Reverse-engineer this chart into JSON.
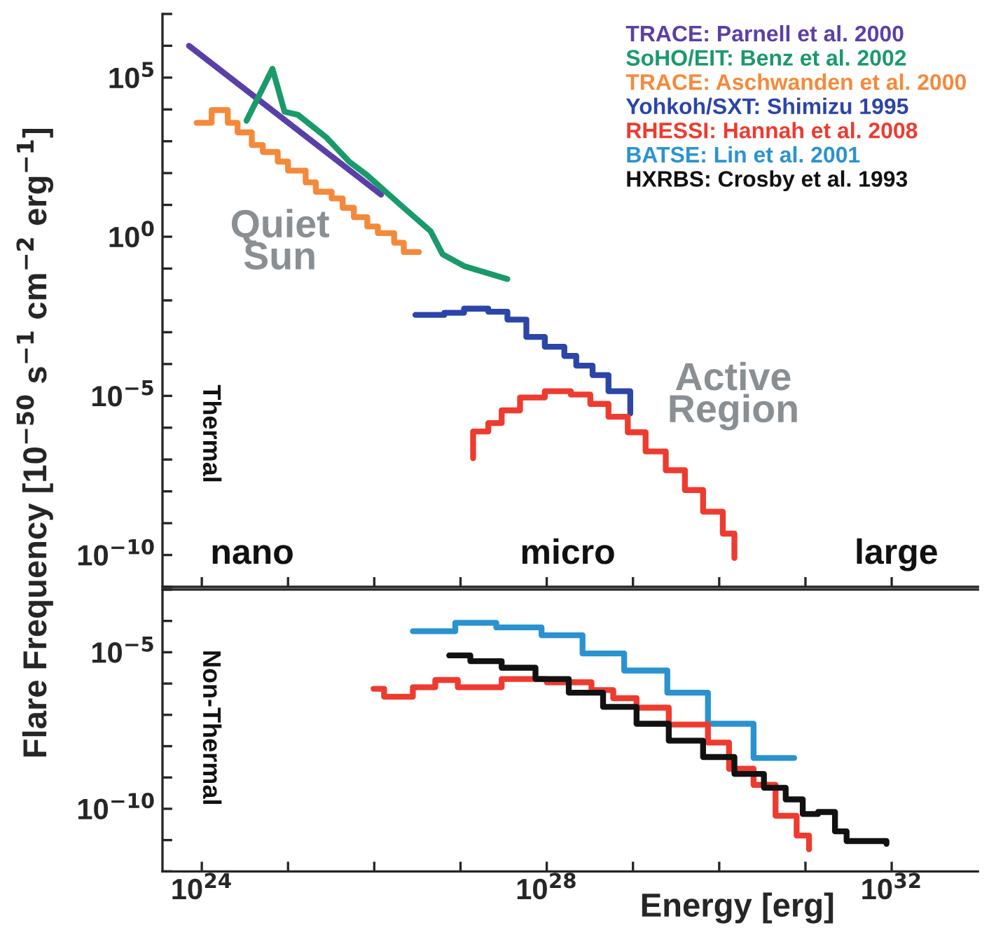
{
  "chart_data": [
    {
      "type": "line",
      "ylabel": "Flare Frequency [10$^{−50}$ s$^{−1}$ cm$^{−2}$ erg$^{−1}$]",
      "log": "xy",
      "legend": "top right",
      "grid": false,
      "tick_labels": "y",
      "xlim": [
        3.5e+23,
        1e+33
      ],
      "ylim": [
        1e-11,
        10000000.0
      ],
      "xticks": [
        {
          "value": 1e+24,
          "label": null
        },
        {
          "value": 1e+25,
          "label": null
        },
        {
          "value": 1e+26,
          "label": null
        },
        {
          "value": 1e+27,
          "label": null
        },
        {
          "value": 1e+28,
          "label": null
        },
        {
          "value": 1e+29,
          "label": null
        },
        {
          "value": 1e+30,
          "label": null
        },
        {
          "value": 1e+31,
          "label": null
        },
        {
          "value": 1e+32,
          "label": null
        }
      ],
      "yticks": [
        {
          "value": 1e-11,
          "label": null
        },
        {
          "value": 1e-10,
          "label": "10$^{−10}$"
        },
        {
          "value": 1e-09,
          "label": null
        },
        {
          "value": 1e-08,
          "label": null
        },
        {
          "value": 1e-07,
          "label": null
        },
        {
          "value": 1e-06,
          "label": null
        },
        {
          "value": 1e-05,
          "label": "10$^{−5}$"
        },
        {
          "value": 0.0001,
          "label": null
        },
        {
          "value": 0.001,
          "label": null
        },
        {
          "value": 0.01,
          "label": null
        },
        {
          "value": 0.1,
          "label": null
        },
        {
          "value": 1,
          "label": "10$^{0}$"
        },
        {
          "value": 10,
          "label": null
        },
        {
          "value": 100,
          "label": null
        },
        {
          "value": 1000,
          "label": null
        },
        {
          "value": 10000.0,
          "label": null
        },
        {
          "value": 100000.0,
          "label": "10$^{5}$"
        },
        {
          "value": 1000000.0,
          "label": null
        },
        {
          "value": 10000000.0,
          "label": null
        }
      ],
      "annotations": [
        "Quiet\nSun",
        "Active\nRegion",
        "Thermal",
        "nano",
        "micro",
        "large"
      ],
      "series": [
        {
          "name": "TRACE: Parnell et al. 2000",
          "type": "line",
          "color": "#5b3fa8",
          "x": [
            7.1e+23,
            1.2e+26
          ],
          "values": [
            1000000.0,
            21
          ]
        },
        {
          "name": "SoHO/EIT: Benz et al. 2002",
          "type": "line",
          "color": "#1a9a6a",
          "x": [
            3.3e+24,
            6.6e+24,
            9.1e+24,
            1.3e+25,
            2.8e+25,
            5.1e+25,
            8.3e+25,
            2.2e+26,
            4.5e+26,
            6.2e+26,
            1.1e+27,
            3.5e+27
          ],
          "values": [
            4400.0,
            190000.0,
            8500.0,
            6800.0,
            1300.0,
            230,
            85,
            8.1,
            1.5,
            0.28,
            0.12,
            0.047
          ]
        },
        {
          "name": "TRACE: Aschwanden et al. 2000",
          "type": "step",
          "color": "#f5893a",
          "x": [
            8.7e+23,
            1.3e+24,
            2e+24,
            2.6e+24,
            3.8e+24,
            5.1e+24,
            7.6e+24,
            1e+25,
            1.6e+25,
            2.1e+25,
            3.2e+25,
            4.3e+25,
            5.8e+25,
            8.3e+25,
            1.1e+26,
            1.7e+26,
            2.2e+26,
            3.3e+26
          ],
          "values": [
            3800.0,
            9500.0,
            3800.0,
            1900.0,
            760,
            460,
            230,
            120,
            51,
            26,
            16,
            8.1,
            4.1,
            2.1,
            1.3,
            0.65,
            0.33,
            0.33
          ]
        },
        {
          "name": "Yohkoh/SXT: Shimizu 1995",
          "type": "step",
          "color": "#2b45a8",
          "x": [
            3e+26,
            6.5e+26,
            1.1e+27,
            2.1e+27,
            3.5e+27,
            5.8e+27,
            9.5e+27,
            1.6e+28,
            2.2e+28,
            3.4e+28,
            5.2e+28,
            9.3e+28
          ],
          "values": [
            0.0035,
            0.0041,
            0.0055,
            0.0044,
            0.0025,
            0.00071,
            0.00035,
            0.00018,
            8.9e-05,
            4.5e-05,
            1.4e-05,
            2.8e-06
          ]
        },
        {
          "name": "RHESSI: Hannah et al. 2008",
          "type": "step",
          "color": "#ee3b2f",
          "x": [
            1.4e+27,
            1.4e+27,
            2.1e+27,
            3e+27,
            4.9e+27,
            9.5e+27,
            1.9e+28,
            3.2e+28,
            5.2e+28,
            8.7e+28,
            1.4e+29,
            2.4e+29,
            4e+29,
            6.5e+29,
            1.1e+30,
            1.5e+30
          ],
          "values": [
            1.1e-07,
            7.6e-07,
            1.4e-06,
            3.5e-06,
            8.9e-06,
            1.4e-05,
            1.1e-05,
            5.6e-06,
            2.2e-06,
            7.2e-07,
            1.8e-07,
            4.6e-08,
            1.1e-08,
            2.3e-09,
            4.7e-10,
            8.1e-11
          ]
        }
      ]
    },
    {
      "type": "line",
      "xlabel": "Energy [erg]",
      "log": "xy",
      "grid": false,
      "xlim": [
        3.5e+23,
        1e+33
      ],
      "ylim": [
        1e-12,
        0.001
      ],
      "xticks": [
        {
          "value": 1e+24,
          "label": "10$^{24}$"
        },
        {
          "value": 1e+25,
          "label": null
        },
        {
          "value": 1e+26,
          "label": null
        },
        {
          "value": 1e+27,
          "label": null
        },
        {
          "value": 1e+28,
          "label": "10$^{28}$"
        },
        {
          "value": 1e+29,
          "label": null
        },
        {
          "value": 1e+30,
          "label": null
        },
        {
          "value": 1e+31,
          "label": null
        },
        {
          "value": 1e+32,
          "label": "10$^{32}$"
        }
      ],
      "yticks": [
        {
          "value": 1e-12,
          "label": null
        },
        {
          "value": 1e-11,
          "label": null
        },
        {
          "value": 1e-10,
          "label": "10$^{−10}$"
        },
        {
          "value": 1e-09,
          "label": null
        },
        {
          "value": 1e-08,
          "label": null
        },
        {
          "value": 1e-07,
          "label": null
        },
        {
          "value": 1e-06,
          "label": null
        },
        {
          "value": 1e-05,
          "label": "10$^{−5}$"
        },
        {
          "value": 0.0001,
          "label": null
        },
        {
          "value": 0.001,
          "label": null
        }
      ],
      "annotations": [
        "Non-Thermal"
      ],
      "series": [
        {
          "name": "BATSE: Lin et al. 2001",
          "type": "step",
          "color": "#2a93cf",
          "x": [
            2.8e+26,
            8.7e+26,
            2.6e+27,
            8.7e+27,
            2.6e+28,
            7.9e+28,
            2.5e+29,
            7.4e+29,
            2.5e+30,
            7.4e+30
          ],
          "values": [
            4.7e-05,
            8.7e-05,
            6.2e-05,
            3.5e-05,
            9.1e-06,
            2.6e-06,
            5.1e-07,
            5.2e-08,
            4.2e-09,
            4.2e-09
          ]
        },
        {
          "type": "step",
          "color": "#ee3b2f",
          "x": [
            9.8e+25,
            1.3e+26,
            2.8e+26,
            5.1e+26,
            9.3e+26,
            3e+27,
            1e+28,
            3.3e+28,
            5.9e+28,
            1.1e+29,
            2.6e+29,
            7.4e+29,
            1.3e+30,
            2.5e+30,
            4.5e+30,
            7.9e+30,
            1.1e+31
          ],
          "values": [
            6.8e-07,
            3.8e-07,
            7.6e-07,
            1.3e-06,
            7.6e-07,
            1.4e-06,
            1.1e-06,
            6.2e-07,
            3.4e-07,
            1.7e-07,
            4.9e-08,
            1.3e-08,
            1.9e-09,
            5.8e-10,
            6e-11,
            1.4e-11,
            5.1e-12
          ]
        },
        {
          "name": "HXRBS: Crosby et al. 1993",
          "type": "step",
          "color": "#111111",
          "x": [
            7.4e+26,
            1.3e+27,
            3e+27,
            7.4e+27,
            1.8e+28,
            4.5e+28,
            1.1e+29,
            2.6e+29,
            6.5e+29,
            1.5e+30,
            3.3e+30,
            5.9e+30,
            9.3e+30,
            1.4e+31,
            2.2e+31,
            3e+31,
            8.7e+31
          ],
          "values": [
            7.9e-06,
            5.2e-06,
            3.2e-06,
            1.4e-06,
            5.1e-07,
            1.8e-07,
            5.2e-08,
            1.5e-08,
            4.5e-09,
            1.3e-09,
            4.7e-10,
            2e-10,
            6.8e-11,
            7.9e-11,
            1.9e-11,
            9.3e-12,
            7.6e-12
          ]
        }
      ]
    }
  ]
}
